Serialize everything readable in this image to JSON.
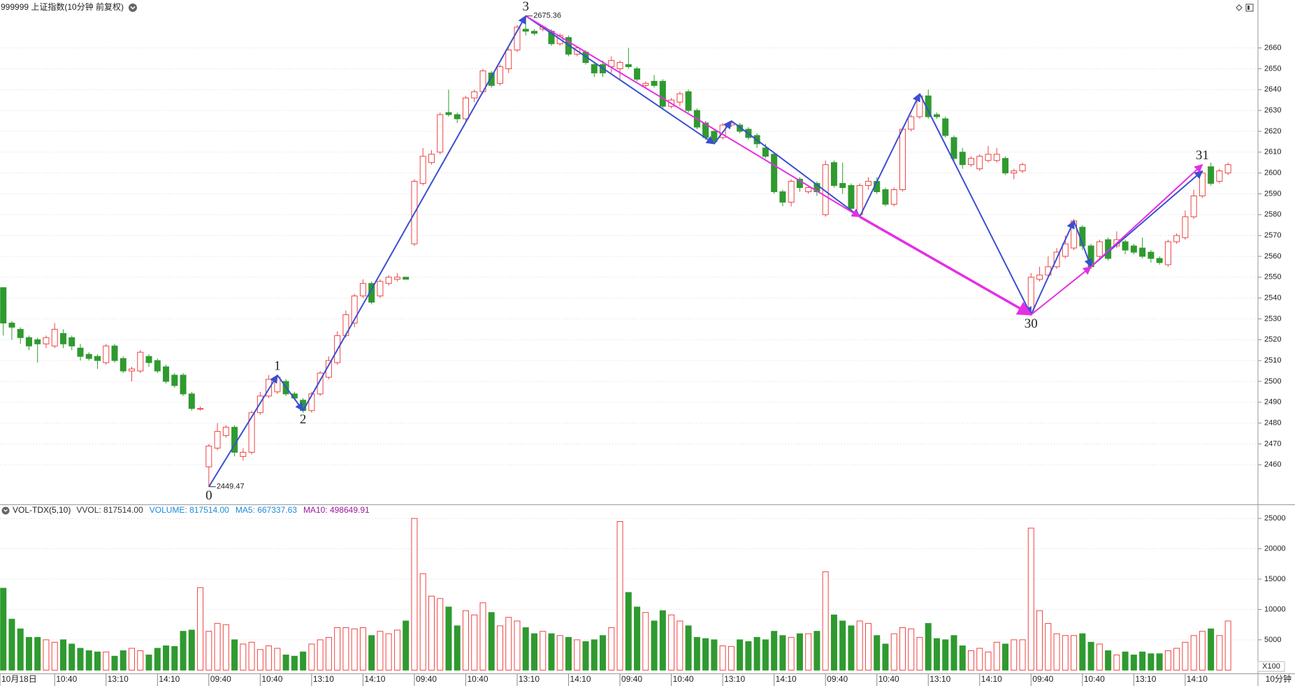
{
  "chart_data": {
    "type": "candlestick",
    "title": "999999 上证指数(10分钟 前复权)",
    "up_color": "#ee4444",
    "down_color": "#2f9a2f",
    "grid": true,
    "ylim": [
      2441,
      2683
    ],
    "yticks": [
      2460,
      2470,
      2480,
      2490,
      2500,
      2510,
      2520,
      2530,
      2540,
      2550,
      2560,
      2570,
      2580,
      2590,
      2600,
      2610,
      2620,
      2630,
      2640,
      2650,
      2660
    ],
    "xticks": [
      {
        "value": 0,
        "label": "10月18日"
      },
      {
        "value": 6,
        "label": "10:40"
      },
      {
        "value": 12,
        "label": "13:10"
      },
      {
        "value": 18,
        "label": "14:10"
      },
      {
        "value": 24,
        "label": "09:40"
      },
      {
        "value": 30,
        "label": "10:40"
      },
      {
        "value": 36,
        "label": "13:10"
      },
      {
        "value": 42,
        "label": "14:10"
      },
      {
        "value": 48,
        "label": "09:40"
      },
      {
        "value": 54,
        "label": "10:40"
      },
      {
        "value": 60,
        "label": "13:10"
      },
      {
        "value": 66,
        "label": "14:10"
      },
      {
        "value": 72,
        "label": "09:40"
      },
      {
        "value": 78,
        "label": "10:40"
      },
      {
        "value": 84,
        "label": "13:10"
      },
      {
        "value": 90,
        "label": "14:10"
      },
      {
        "value": 96,
        "label": "09:40"
      },
      {
        "value": 102,
        "label": "10:40"
      },
      {
        "value": 108,
        "label": "13:10"
      },
      {
        "value": 114,
        "label": "14:10"
      },
      {
        "value": 120,
        "label": "09:40"
      },
      {
        "value": 126,
        "label": "10:40"
      },
      {
        "value": 132,
        "label": "13:10"
      },
      {
        "value": 138,
        "label": "14:10"
      }
    ],
    "period_label": "10分钟",
    "candles": [
      [
        2545,
        2545,
        2522,
        2528
      ],
      [
        2528,
        2529,
        2520,
        2526
      ],
      [
        2525,
        2526,
        2518,
        2521
      ],
      [
        2521,
        2522,
        2515,
        2517
      ],
      [
        2520,
        2521,
        2509,
        2518
      ],
      [
        2518,
        2522,
        2516,
        2521
      ],
      [
        2517,
        2528,
        2516,
        2525
      ],
      [
        2523,
        2525,
        2516,
        2518
      ],
      [
        2521,
        2522,
        2515,
        2517
      ],
      [
        2516,
        2518,
        2510,
        2512
      ],
      [
        2513,
        2514,
        2510,
        2511
      ],
      [
        2512,
        2513,
        2506,
        2510
      ],
      [
        2509,
        2518,
        2508,
        2517
      ],
      [
        2517,
        2518,
        2509,
        2510
      ],
      [
        2511,
        2512,
        2504,
        2505
      ],
      [
        2505,
        2507,
        2500,
        2506
      ],
      [
        2505,
        2515,
        2504,
        2514
      ],
      [
        2512,
        2513,
        2507,
        2509
      ],
      [
        2510,
        2511,
        2504,
        2505
      ],
      [
        2507,
        2508,
        2499,
        2500
      ],
      [
        2503,
        2504,
        2497,
        2498
      ],
      [
        2503,
        2504,
        2493,
        2494
      ],
      [
        2494,
        2495,
        2486,
        2487
      ],
      [
        2487,
        2488,
        2486,
        2487
      ],
      [
        2459,
        2470,
        2449.47,
        2469
      ],
      [
        2468,
        2480,
        2467,
        2476
      ],
      [
        2474,
        2479,
        2473,
        2478
      ],
      [
        2478,
        2479,
        2464,
        2466
      ],
      [
        2464,
        2468,
        2462,
        2466
      ],
      [
        2466,
        2486,
        2465,
        2485
      ],
      [
        2485,
        2495,
        2484,
        2493
      ],
      [
        2493,
        2503,
        2492,
        2501
      ],
      [
        2495,
        2503,
        2494,
        2502
      ],
      [
        2500,
        2501,
        2493,
        2494
      ],
      [
        2494,
        2495,
        2491,
        2492
      ],
      [
        2491,
        2492,
        2485,
        2486
      ],
      [
        2486,
        2495,
        2485,
        2494
      ],
      [
        2494,
        2505,
        2493,
        2504
      ],
      [
        2502,
        2512,
        2501,
        2510
      ],
      [
        2509,
        2524,
        2508,
        2522
      ],
      [
        2522,
        2534,
        2521,
        2532
      ],
      [
        2528,
        2542,
        2526,
        2541
      ],
      [
        2541,
        2549,
        2540,
        2547
      ],
      [
        2547,
        2548,
        2537,
        2538
      ],
      [
        2541,
        2549,
        2540,
        2548
      ],
      [
        2547,
        2551,
        2546,
        2550
      ],
      [
        2549,
        2552,
        2548,
        2550
      ],
      [
        2550,
        2550,
        2549,
        2549
      ],
      [
        2566,
        2597,
        2565,
        2596
      ],
      [
        2595,
        2612,
        2594,
        2608
      ],
      [
        2605,
        2611,
        2604,
        2609
      ],
      [
        2610,
        2629,
        2609,
        2628
      ],
      [
        2629,
        2640,
        2627,
        2628
      ],
      [
        2628,
        2629,
        2624,
        2626
      ],
      [
        2626,
        2637,
        2625,
        2636
      ],
      [
        2636,
        2640,
        2634,
        2639
      ],
      [
        2639,
        2650,
        2638,
        2649
      ],
      [
        2648,
        2649,
        2641,
        2642
      ],
      [
        2643,
        2652,
        2642,
        2651
      ],
      [
        2650,
        2660,
        2648,
        2659
      ],
      [
        2659,
        2671,
        2658,
        2670
      ],
      [
        2669,
        2675.36,
        2666,
        2668
      ],
      [
        2668,
        2669,
        2666,
        2667
      ],
      [
        2669,
        2671,
        2668,
        2670
      ],
      [
        2668,
        2669,
        2661,
        2662
      ],
      [
        2662,
        2667,
        2661,
        2666
      ],
      [
        2665,
        2666,
        2656,
        2657
      ],
      [
        2657,
        2661,
        2656,
        2660
      ],
      [
        2658,
        2659,
        2652,
        2653
      ],
      [
        2652,
        2653,
        2646,
        2648
      ],
      [
        2652,
        2654,
        2646,
        2648
      ],
      [
        2651,
        2656,
        2648,
        2654
      ],
      [
        2650,
        2654,
        2645,
        2653
      ],
      [
        2652,
        2660,
        2650,
        2651
      ],
      [
        2650,
        2651,
        2644,
        2645
      ],
      [
        2642,
        2644,
        2641,
        2643
      ],
      [
        2644,
        2647,
        2641,
        2642
      ],
      [
        2644,
        2645,
        2631,
        2632
      ],
      [
        2632,
        2636,
        2631,
        2635
      ],
      [
        2634,
        2639,
        2632,
        2638
      ],
      [
        2639,
        2640,
        2629,
        2630
      ],
      [
        2630,
        2631,
        2621,
        2622
      ],
      [
        2624,
        2625,
        2616,
        2617
      ],
      [
        2620,
        2621,
        2614,
        2615
      ],
      [
        2617,
        2624,
        2616,
        2623
      ],
      [
        2623,
        2625,
        2622,
        2624
      ],
      [
        2623,
        2624,
        2619,
        2620
      ],
      [
        2621,
        2622,
        2616,
        2617
      ],
      [
        2618,
        2619,
        2612,
        2614
      ],
      [
        2612,
        2614,
        2607,
        2608
      ],
      [
        2609,
        2610,
        2590,
        2591
      ],
      [
        2591,
        2592,
        2584,
        2586
      ],
      [
        2586,
        2597,
        2584,
        2596
      ],
      [
        2597,
        2598,
        2591,
        2593
      ],
      [
        2591,
        2594,
        2590,
        2593
      ],
      [
        2595,
        2596,
        2589,
        2591
      ],
      [
        2580,
        2606,
        2579,
        2604
      ],
      [
        2605,
        2606,
        2593,
        2594
      ],
      [
        2595,
        2605,
        2590,
        2593
      ],
      [
        2594,
        2595,
        2582,
        2583
      ],
      [
        2580,
        2595,
        2579,
        2594
      ],
      [
        2594,
        2598,
        2592,
        2596
      ],
      [
        2596,
        2598,
        2590,
        2591
      ],
      [
        2592,
        2593,
        2584,
        2585
      ],
      [
        2585,
        2593,
        2584,
        2592
      ],
      [
        2592,
        2622,
        2591,
        2621
      ],
      [
        2621,
        2628,
        2620,
        2627
      ],
      [
        2627,
        2638,
        2626,
        2637
      ],
      [
        2637,
        2640,
        2626,
        2627
      ],
      [
        2628,
        2629,
        2626,
        2627
      ],
      [
        2626,
        2627,
        2617,
        2618
      ],
      [
        2617,
        2618,
        2606,
        2607
      ],
      [
        2610,
        2612,
        2602,
        2604
      ],
      [
        2604,
        2608,
        2603,
        2607
      ],
      [
        2602,
        2609,
        2601,
        2608
      ],
      [
        2606,
        2613,
        2605,
        2609
      ],
      [
        2606,
        2612,
        2605,
        2609
      ],
      [
        2607,
        2608,
        2599,
        2600
      ],
      [
        2600,
        2602,
        2597,
        2601
      ],
      [
        2601,
        2605,
        2600,
        2604
      ],
      [
        2533,
        2552,
        2532,
        2550
      ],
      [
        2549,
        2555,
        2548,
        2551
      ],
      [
        2551,
        2560,
        2550,
        2555
      ],
      [
        2555,
        2564,
        2554,
        2562
      ],
      [
        2560,
        2570,
        2559,
        2566
      ],
      [
        2564,
        2578,
        2563,
        2577
      ],
      [
        2574,
        2575,
        2563,
        2565
      ],
      [
        2565,
        2566,
        2554,
        2555
      ],
      [
        2560,
        2568,
        2559,
        2567
      ],
      [
        2568,
        2569,
        2558,
        2559
      ],
      [
        2565,
        2572,
        2564,
        2568
      ],
      [
        2567,
        2568,
        2561,
        2563
      ],
      [
        2565,
        2566,
        2561,
        2562
      ],
      [
        2564,
        2569,
        2559,
        2560
      ],
      [
        2562,
        2563,
        2557,
        2559
      ],
      [
        2559,
        2560,
        2556,
        2557
      ],
      [
        2556,
        2568,
        2555,
        2567
      ],
      [
        2567,
        2571,
        2566,
        2570
      ],
      [
        2569,
        2582,
        2568,
        2579
      ],
      [
        2579,
        2592,
        2578,
        2589
      ],
      [
        2589,
        2601,
        2588,
        2600
      ],
      [
        2603,
        2605,
        2594,
        2595
      ],
      [
        2596,
        2602,
        2595,
        2601
      ],
      [
        2600,
        2605,
        2599,
        2604
      ]
    ],
    "waves": [
      {
        "color": "#3a4fd0",
        "points": [
          [
            24,
            2449.47
          ],
          [
            32,
            2503
          ],
          [
            35,
            2486
          ],
          [
            61,
            2675.36
          ]
        ],
        "labels": [
          "0",
          "1",
          "2",
          "3"
        ]
      },
      {
        "color": "#3a4fd0",
        "points": [
          [
            61,
            2675.36
          ],
          [
            83,
            2614
          ],
          [
            85,
            2625
          ],
          [
            100,
            2579
          ],
          [
            107,
            2638
          ],
          [
            120,
            2532
          ],
          [
            125,
            2577
          ],
          [
            127,
            2555
          ],
          [
            140,
            2601
          ]
        ],
        "labels": [
          null,
          null,
          null,
          null,
          null,
          "30",
          null,
          null,
          null
        ]
      },
      {
        "color": "#e52ee5",
        "points": [
          [
            61,
            2675.36
          ],
          [
            100,
            2579
          ],
          [
            120,
            2532
          ],
          [
            127,
            2555
          ],
          [
            140,
            2604
          ]
        ],
        "labels": [
          null,
          null,
          null,
          null,
          "31"
        ]
      }
    ],
    "volume": {
      "title": "VOL-TDX(5,10)",
      "legend": [
        {
          "text": "VVOL: 817514.00",
          "color": "#333333"
        },
        {
          "text": "VOLUME: 817514.00",
          "color": "#1a8ad8"
        },
        {
          "text": "MA5: 667337.63",
          "color": "#1a8ad8"
        },
        {
          "text": "MA10: 498649.91",
          "color": "#9a1a9a"
        }
      ],
      "unit": "X100",
      "ylim": [
        0,
        27200
      ],
      "yticks": [
        5000,
        10000,
        15000,
        20000,
        25000
      ],
      "values": [
        13500,
        8400,
        6800,
        5400,
        5400,
        5000,
        4600,
        5000,
        4300,
        3600,
        3200,
        3000,
        3000,
        2300,
        3200,
        3600,
        3200,
        2500,
        3600,
        4000,
        3900,
        6400,
        6600,
        13600,
        6400,
        7700,
        7500,
        5000,
        4300,
        4600,
        3400,
        4000,
        3600,
        2500,
        2300,
        3000,
        4300,
        5000,
        5400,
        7000,
        7000,
        6800,
        7000,
        5700,
        6400,
        6000,
        6600,
        8100,
        25000,
        15900,
        12200,
        11800,
        10400,
        7300,
        9800,
        9100,
        11100,
        9500,
        7300,
        8700,
        8100,
        7000,
        6000,
        6400,
        6000,
        5700,
        5400,
        5000,
        4700,
        5000,
        5700,
        7000,
        24500,
        12800,
        10400,
        9500,
        8100,
        9800,
        9100,
        8100,
        7300,
        5400,
        5200,
        5000,
        4000,
        3900,
        5000,
        4700,
        5400,
        5000,
        6400,
        5700,
        5400,
        6000,
        6000,
        6400,
        16200,
        9100,
        8100,
        7300,
        8100,
        7700,
        5700,
        4300,
        6000,
        7000,
        6800,
        5400,
        7700,
        5200,
        5000,
        5700,
        4000,
        3200,
        3600,
        3000,
        4600,
        4300,
        5000,
        5000,
        23400,
        9800,
        7700,
        6000,
        5700,
        5700,
        6000,
        4600,
        4300,
        3200,
        2500,
        3000,
        2500,
        3000,
        2700,
        2700,
        3200,
        3600,
        4600,
        5700,
        6400,
        6800,
        5700,
        8100
      ]
    }
  }
}
